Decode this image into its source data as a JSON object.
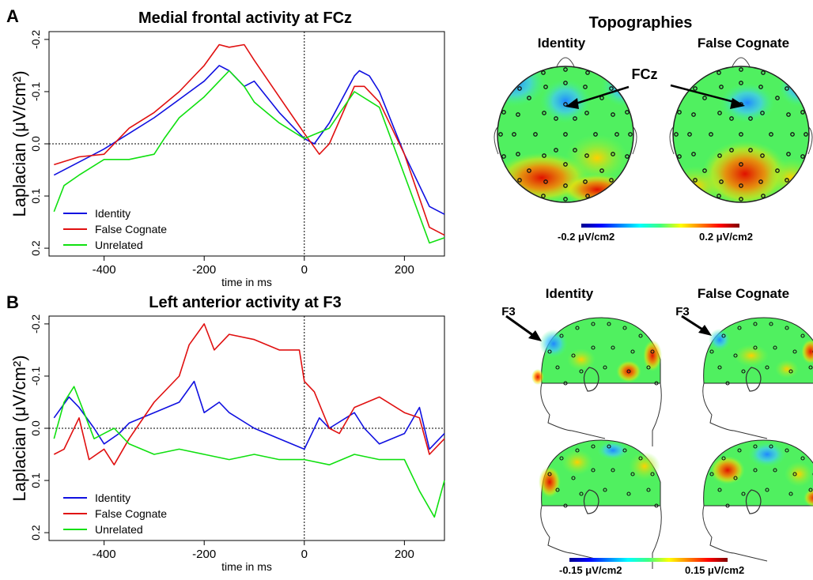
{
  "panels": {
    "a_letter": "A",
    "b_letter": "B"
  },
  "topo": {
    "title": "Topographies",
    "identity": "Identity",
    "false_cognate": "False Cognate",
    "fcz_marker": "FCz",
    "f3_marker": "F3",
    "cb1_min": "-0.2 μV/cm2",
    "cb1_max": "0.2 μV/cm2",
    "cb2_min": "-0.15 μV/cm2",
    "cb2_max": "0.15 μV/cm2"
  },
  "colors": {
    "identity": "#1010e0",
    "false_cognate": "#e01010",
    "unrelated": "#10e010"
  },
  "chart_data": [
    {
      "type": "line",
      "title": "Medial frontal activity at FCz",
      "xlabel": "time in ms",
      "ylabel": "Laplacian (μV/cm²)",
      "xlim": [
        -510,
        280
      ],
      "ylim": [
        0.215,
        -0.215
      ],
      "y_inverted": true,
      "xticks": [
        "-400",
        "-200",
        "0",
        "200"
      ],
      "xtick_values": [
        -400,
        -200,
        0,
        200
      ],
      "yticks": [
        "-0.2",
        "-0.1",
        "0.0",
        "0.1",
        "0.2"
      ],
      "ytick_values": [
        -0.2,
        -0.1,
        0.0,
        0.1,
        0.2
      ],
      "legend_position": "bottom-left",
      "series": [
        {
          "name": "Identity",
          "x": [
            -500,
            -450,
            -400,
            -350,
            -300,
            -250,
            -200,
            -170,
            -150,
            -120,
            -100,
            -50,
            0,
            20,
            50,
            100,
            110,
            130,
            150,
            200,
            250,
            280
          ],
          "values": [
            0.06,
            0.035,
            0.01,
            -0.02,
            -0.05,
            -0.085,
            -0.12,
            -0.15,
            -0.14,
            -0.11,
            -0.12,
            -0.06,
            -0.01,
            0.0,
            -0.04,
            -0.13,
            -0.14,
            -0.13,
            -0.1,
            0.02,
            0.12,
            0.135
          ]
        },
        {
          "name": "False Cognate",
          "x": [
            -500,
            -450,
            -400,
            -350,
            -300,
            -250,
            -200,
            -170,
            -150,
            -120,
            -100,
            -50,
            0,
            30,
            50,
            100,
            120,
            150,
            200,
            250,
            280
          ],
          "values": [
            0.04,
            0.025,
            0.02,
            -0.03,
            -0.06,
            -0.1,
            -0.15,
            -0.19,
            -0.185,
            -0.19,
            -0.16,
            -0.09,
            -0.02,
            0.02,
            0.0,
            -0.11,
            -0.11,
            -0.08,
            0.02,
            0.16,
            0.175
          ]
        },
        {
          "name": "Unrelated",
          "x": [
            -500,
            -480,
            -450,
            -400,
            -350,
            -300,
            -280,
            -250,
            -200,
            -170,
            -150,
            -120,
            -100,
            -50,
            0,
            50,
            100,
            150,
            200,
            250,
            280
          ],
          "values": [
            0.13,
            0.08,
            0.06,
            0.03,
            0.03,
            0.02,
            -0.01,
            -0.05,
            -0.09,
            -0.12,
            -0.14,
            -0.11,
            -0.08,
            -0.04,
            -0.01,
            -0.03,
            -0.1,
            -0.07,
            0.06,
            0.19,
            0.18
          ]
        }
      ]
    },
    {
      "type": "line",
      "title": "Left anterior activity at F3",
      "xlabel": "time in ms",
      "ylabel": "Laplacian (μV/cm²)",
      "xlim": [
        -510,
        280
      ],
      "ylim": [
        0.215,
        -0.215
      ],
      "y_inverted": true,
      "xticks": [
        "-400",
        "-200",
        "0",
        "200"
      ],
      "xtick_values": [
        -400,
        -200,
        0,
        200
      ],
      "yticks": [
        "-0.2",
        "-0.1",
        "0.0",
        "0.1",
        "0.2"
      ],
      "ytick_values": [
        -0.2,
        -0.1,
        0.0,
        0.1,
        0.2
      ],
      "legend_position": "bottom-left",
      "series": [
        {
          "name": "Identity",
          "x": [
            -500,
            -470,
            -450,
            -420,
            -400,
            -370,
            -350,
            -300,
            -250,
            -220,
            -200,
            -170,
            -150,
            -100,
            -50,
            0,
            30,
            50,
            100,
            120,
            150,
            200,
            230,
            250,
            280
          ],
          "values": [
            -0.02,
            -0.06,
            -0.04,
            0.0,
            0.03,
            0.01,
            -0.01,
            -0.03,
            -0.05,
            -0.09,
            -0.03,
            -0.05,
            -0.03,
            0.0,
            0.02,
            0.04,
            -0.02,
            0.0,
            -0.03,
            0.0,
            0.03,
            0.01,
            -0.04,
            0.04,
            0.01
          ]
        },
        {
          "name": "False Cognate",
          "x": [
            -500,
            -480,
            -450,
            -430,
            -400,
            -380,
            -350,
            -300,
            -250,
            -230,
            -200,
            -180,
            -150,
            -100,
            -50,
            -10,
            0,
            20,
            50,
            70,
            100,
            150,
            200,
            230,
            250,
            280
          ],
          "values": [
            0.05,
            0.04,
            -0.02,
            0.06,
            0.04,
            0.07,
            0.02,
            -0.05,
            -0.1,
            -0.16,
            -0.2,
            -0.15,
            -0.18,
            -0.17,
            -0.15,
            -0.15,
            -0.09,
            -0.07,
            0.0,
            0.01,
            -0.04,
            -0.06,
            -0.03,
            -0.02,
            0.05,
            0.02
          ]
        },
        {
          "name": "Unrelated",
          "x": [
            -500,
            -480,
            -460,
            -440,
            -420,
            -400,
            -380,
            -350,
            -300,
            -250,
            -200,
            -150,
            -100,
            -50,
            0,
            50,
            100,
            150,
            200,
            230,
            260,
            280
          ],
          "values": [
            0.02,
            -0.05,
            -0.08,
            -0.03,
            0.02,
            0.01,
            0.0,
            0.03,
            0.05,
            0.04,
            0.05,
            0.06,
            0.05,
            0.06,
            0.06,
            0.07,
            0.05,
            0.06,
            0.06,
            0.12,
            0.17,
            0.1
          ]
        }
      ]
    }
  ]
}
